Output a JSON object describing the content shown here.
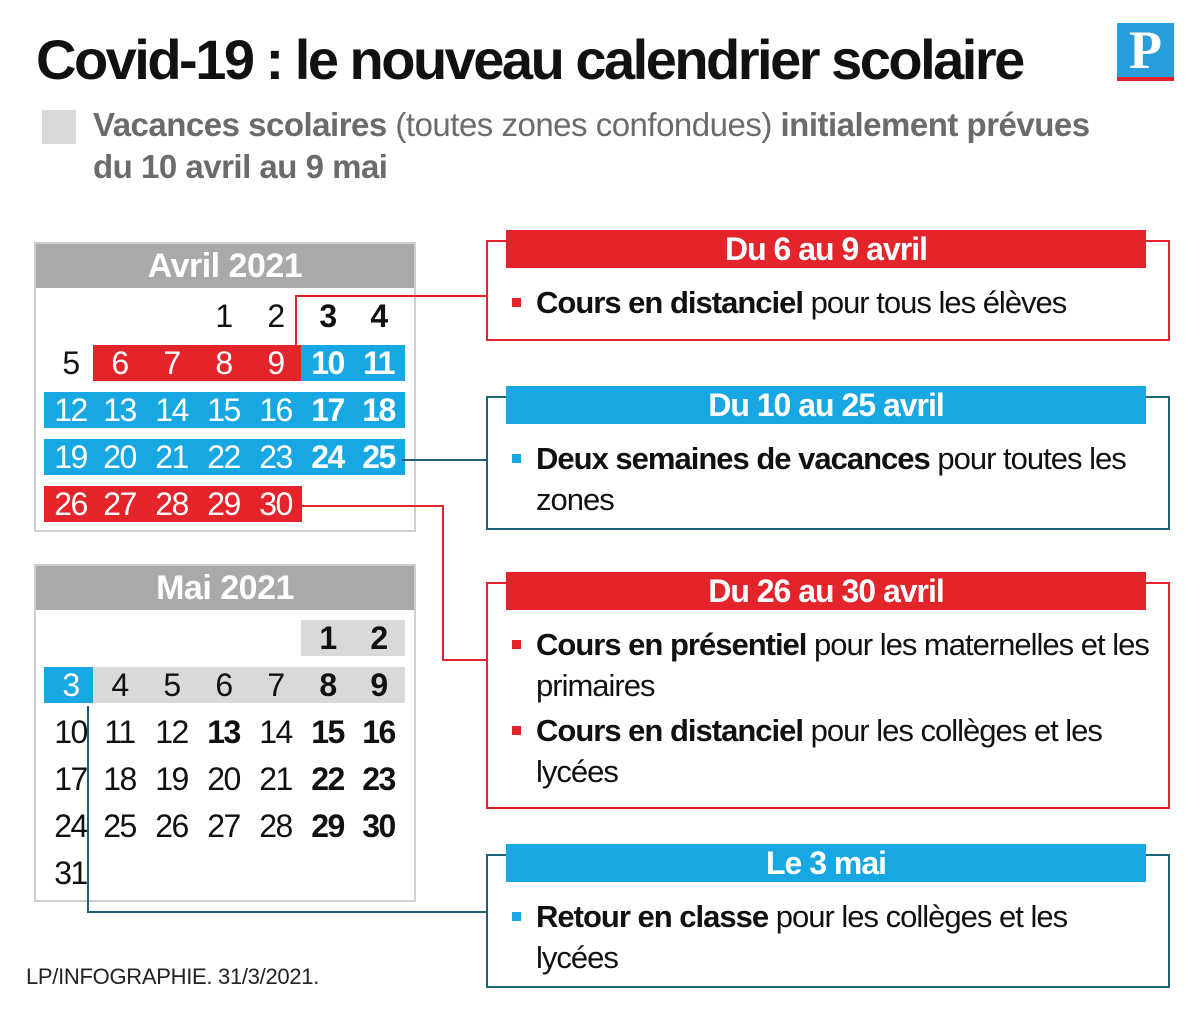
{
  "title": "Covid-19 : le nouveau calendrier scolaire",
  "logo": "P",
  "legend": {
    "bold1": "Vacances scolaires",
    "normal": " (toutes zones confondues) ",
    "bold2": "initialement prévues du 10 avril au 9 mai"
  },
  "colors": {
    "red": "#e3242b",
    "blue": "#17a8e3",
    "grey": "#d9d9d9",
    "header": "#a8a9ab"
  },
  "calendars": [
    {
      "title": "Avril 2021",
      "rows": [
        [
          "",
          "",
          "",
          "1",
          "2",
          "3",
          "4"
        ],
        [
          "5",
          "6",
          "7",
          "8",
          "9",
          "10",
          "11"
        ],
        [
          "12",
          "13",
          "14",
          "15",
          "16",
          "17",
          "18"
        ],
        [
          "19",
          "20",
          "21",
          "22",
          "23",
          "24",
          "25"
        ],
        [
          "26",
          "27",
          "28",
          "29",
          "30",
          "",
          ""
        ]
      ]
    },
    {
      "title": "Mai 2021",
      "rows": [
        [
          "",
          "",
          "",
          "",
          "",
          "1",
          "2"
        ],
        [
          "3",
          "4",
          "5",
          "6",
          "7",
          "8",
          "9"
        ],
        [
          "10",
          "11",
          "12",
          "13",
          "14",
          "15",
          "16"
        ],
        [
          "17",
          "18",
          "19",
          "20",
          "21",
          "22",
          "23"
        ],
        [
          "24",
          "25",
          "26",
          "27",
          "28",
          "29",
          "30"
        ],
        [
          "31",
          "",
          "",
          "",
          "",
          "",
          ""
        ]
      ]
    }
  ],
  "boxes": [
    {
      "header": "Du 6 au 9 avril",
      "color": "red",
      "items": [
        {
          "bold": "Cours en distanciel",
          "text": " pour tous les élèves"
        }
      ]
    },
    {
      "header": "Du 10 au 25 avril",
      "color": "blue",
      "items": [
        {
          "bold": "Deux semaines de vacances",
          "text": " pour toutes les zones"
        }
      ]
    },
    {
      "header": "Du 26 au 30 avril",
      "color": "red",
      "items": [
        {
          "bold": "Cours en présentiel",
          "text": " pour les maternelles et les primaires"
        },
        {
          "bold": "Cours en distanciel",
          "text": " pour les collèges et les lycées"
        }
      ]
    },
    {
      "header": "Le 3 mai",
      "color": "blue",
      "items": [
        {
          "bold": "Retour en classe",
          "text": " pour les collèges et les lycées"
        }
      ]
    }
  ],
  "credit": "LP/INFOGRAPHIE.  31/3/2021."
}
